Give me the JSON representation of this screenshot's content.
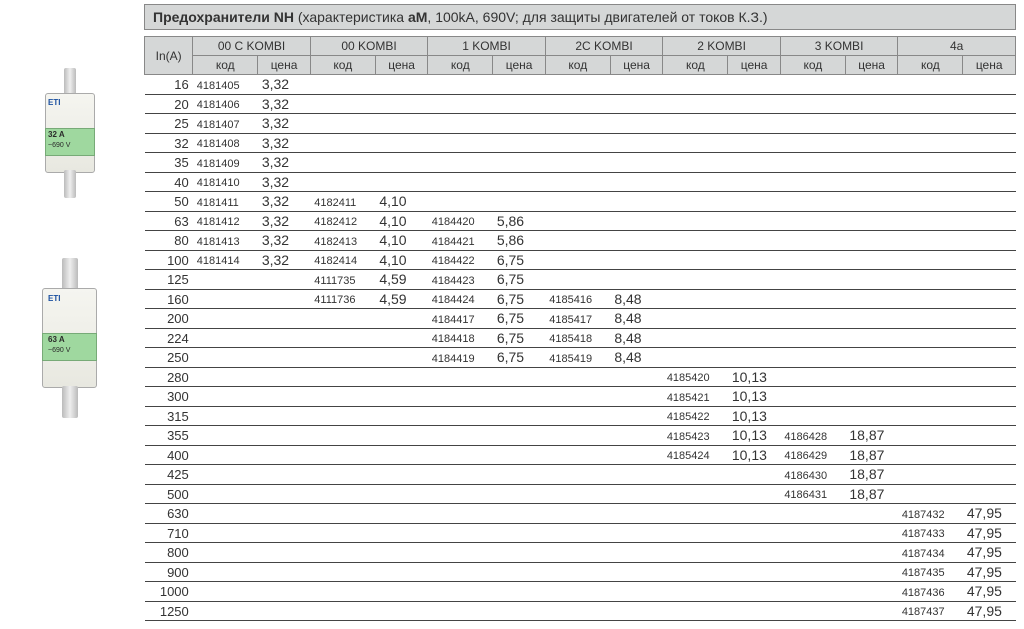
{
  "title": {
    "bold_prefix": "Предохранители NH",
    "paren_open": " (характеристика ",
    "am_bold": "аМ",
    "rest": ", 100kA, 690V; для защиты двигателей от токов К.З.)"
  },
  "columns": {
    "in_header": "In(A)",
    "groups": [
      "00 C KOMBI",
      "00 KOMBI",
      "1 KOMBI",
      "2C KOMBI",
      "2 KOMBI",
      "3 KOMBI",
      "4a"
    ],
    "sub_code": "код",
    "sub_price": "цена"
  },
  "rows": [
    {
      "in": "16",
      "cells": [
        [
          "4181405",
          "3,32"
        ],
        [
          "",
          ""
        ],
        [
          "",
          ""
        ],
        [
          "",
          ""
        ],
        [
          "",
          ""
        ],
        [
          "",
          ""
        ],
        [
          "",
          ""
        ]
      ]
    },
    {
      "in": "20",
      "cells": [
        [
          "4181406",
          "3,32"
        ],
        [
          "",
          ""
        ],
        [
          "",
          ""
        ],
        [
          "",
          ""
        ],
        [
          "",
          ""
        ],
        [
          "",
          ""
        ],
        [
          "",
          ""
        ]
      ]
    },
    {
      "in": "25",
      "cells": [
        [
          "4181407",
          "3,32"
        ],
        [
          "",
          ""
        ],
        [
          "",
          ""
        ],
        [
          "",
          ""
        ],
        [
          "",
          ""
        ],
        [
          "",
          ""
        ],
        [
          "",
          ""
        ]
      ]
    },
    {
      "in": "32",
      "cells": [
        [
          "4181408",
          "3,32"
        ],
        [
          "",
          ""
        ],
        [
          "",
          ""
        ],
        [
          "",
          ""
        ],
        [
          "",
          ""
        ],
        [
          "",
          ""
        ],
        [
          "",
          ""
        ]
      ]
    },
    {
      "in": "35",
      "cells": [
        [
          "4181409",
          "3,32"
        ],
        [
          "",
          ""
        ],
        [
          "",
          ""
        ],
        [
          "",
          ""
        ],
        [
          "",
          ""
        ],
        [
          "",
          ""
        ],
        [
          "",
          ""
        ]
      ]
    },
    {
      "in": "40",
      "cells": [
        [
          "4181410",
          "3,32"
        ],
        [
          "",
          ""
        ],
        [
          "",
          ""
        ],
        [
          "",
          ""
        ],
        [
          "",
          ""
        ],
        [
          "",
          ""
        ],
        [
          "",
          ""
        ]
      ]
    },
    {
      "in": "50",
      "cells": [
        [
          "4181411",
          "3,32"
        ],
        [
          "4182411",
          "4,10"
        ],
        [
          "",
          ""
        ],
        [
          "",
          ""
        ],
        [
          "",
          ""
        ],
        [
          "",
          ""
        ],
        [
          "",
          ""
        ]
      ]
    },
    {
      "in": "63",
      "cells": [
        [
          "4181412",
          "3,32"
        ],
        [
          "4182412",
          "4,10"
        ],
        [
          "4184420",
          "5,86"
        ],
        [
          "",
          ""
        ],
        [
          "",
          ""
        ],
        [
          "",
          ""
        ],
        [
          "",
          ""
        ]
      ]
    },
    {
      "in": "80",
      "cells": [
        [
          "4181413",
          "3,32"
        ],
        [
          "4182413",
          "4,10"
        ],
        [
          "4184421",
          "5,86"
        ],
        [
          "",
          ""
        ],
        [
          "",
          ""
        ],
        [
          "",
          ""
        ],
        [
          "",
          ""
        ]
      ]
    },
    {
      "in": "100",
      "cells": [
        [
          "4181414",
          "3,32"
        ],
        [
          "4182414",
          "4,10"
        ],
        [
          "4184422",
          "6,75"
        ],
        [
          "",
          ""
        ],
        [
          "",
          ""
        ],
        [
          "",
          ""
        ],
        [
          "",
          ""
        ]
      ]
    },
    {
      "in": "125",
      "cells": [
        [
          "",
          ""
        ],
        [
          "4111735",
          "4,59"
        ],
        [
          "4184423",
          "6,75"
        ],
        [
          "",
          ""
        ],
        [
          "",
          ""
        ],
        [
          "",
          ""
        ],
        [
          "",
          ""
        ]
      ]
    },
    {
      "in": "160",
      "cells": [
        [
          "",
          ""
        ],
        [
          "4111736",
          "4,59"
        ],
        [
          "4184424",
          "6,75"
        ],
        [
          "4185416",
          "8,48"
        ],
        [
          "",
          ""
        ],
        [
          "",
          ""
        ],
        [
          "",
          ""
        ]
      ]
    },
    {
      "in": "200",
      "cells": [
        [
          "",
          ""
        ],
        [
          "",
          ""
        ],
        [
          "4184417",
          "6,75"
        ],
        [
          "4185417",
          "8,48"
        ],
        [
          "",
          ""
        ],
        [
          "",
          ""
        ],
        [
          "",
          ""
        ]
      ]
    },
    {
      "in": "224",
      "cells": [
        [
          "",
          ""
        ],
        [
          "",
          ""
        ],
        [
          "4184418",
          "6,75"
        ],
        [
          "4185418",
          "8,48"
        ],
        [
          "",
          ""
        ],
        [
          "",
          ""
        ],
        [
          "",
          ""
        ]
      ]
    },
    {
      "in": "250",
      "cells": [
        [
          "",
          ""
        ],
        [
          "",
          ""
        ],
        [
          "4184419",
          "6,75"
        ],
        [
          "4185419",
          "8,48"
        ],
        [
          "",
          ""
        ],
        [
          "",
          ""
        ],
        [
          "",
          ""
        ]
      ]
    },
    {
      "in": "280",
      "cells": [
        [
          "",
          ""
        ],
        [
          "",
          ""
        ],
        [
          "",
          ""
        ],
        [
          "",
          ""
        ],
        [
          "4185420",
          "10,13"
        ],
        [
          "",
          ""
        ],
        [
          "",
          ""
        ]
      ]
    },
    {
      "in": "300",
      "cells": [
        [
          "",
          ""
        ],
        [
          "",
          ""
        ],
        [
          "",
          ""
        ],
        [
          "",
          ""
        ],
        [
          "4185421",
          "10,13"
        ],
        [
          "",
          ""
        ],
        [
          "",
          ""
        ]
      ]
    },
    {
      "in": "315",
      "cells": [
        [
          "",
          ""
        ],
        [
          "",
          ""
        ],
        [
          "",
          ""
        ],
        [
          "",
          ""
        ],
        [
          "4185422",
          "10,13"
        ],
        [
          "",
          ""
        ],
        [
          "",
          ""
        ]
      ]
    },
    {
      "in": "355",
      "cells": [
        [
          "",
          ""
        ],
        [
          "",
          ""
        ],
        [
          "",
          ""
        ],
        [
          "",
          ""
        ],
        [
          "4185423",
          "10,13"
        ],
        [
          "4186428",
          "18,87"
        ],
        [
          "",
          ""
        ]
      ]
    },
    {
      "in": "400",
      "cells": [
        [
          "",
          ""
        ],
        [
          "",
          ""
        ],
        [
          "",
          ""
        ],
        [
          "",
          ""
        ],
        [
          "4185424",
          "10,13"
        ],
        [
          "4186429",
          "18,87"
        ],
        [
          "",
          ""
        ]
      ]
    },
    {
      "in": "425",
      "cells": [
        [
          "",
          ""
        ],
        [
          "",
          ""
        ],
        [
          "",
          ""
        ],
        [
          "",
          ""
        ],
        [
          "",
          ""
        ],
        [
          "4186430",
          "18,87"
        ],
        [
          "",
          ""
        ]
      ]
    },
    {
      "in": "500",
      "cells": [
        [
          "",
          ""
        ],
        [
          "",
          ""
        ],
        [
          "",
          ""
        ],
        [
          "",
          ""
        ],
        [
          "",
          ""
        ],
        [
          "4186431",
          "18,87"
        ],
        [
          "",
          ""
        ]
      ]
    },
    {
      "in": "630",
      "cells": [
        [
          "",
          ""
        ],
        [
          "",
          ""
        ],
        [
          "",
          ""
        ],
        [
          "",
          ""
        ],
        [
          "",
          ""
        ],
        [
          "",
          ""
        ],
        [
          "4187432",
          "47,95"
        ]
      ]
    },
    {
      "in": "710",
      "cells": [
        [
          "",
          ""
        ],
        [
          "",
          ""
        ],
        [
          "",
          ""
        ],
        [
          "",
          ""
        ],
        [
          "",
          ""
        ],
        [
          "",
          ""
        ],
        [
          "4187433",
          "47,95"
        ]
      ]
    },
    {
      "in": "800",
      "cells": [
        [
          "",
          ""
        ],
        [
          "",
          ""
        ],
        [
          "",
          ""
        ],
        [
          "",
          ""
        ],
        [
          "",
          ""
        ],
        [
          "",
          ""
        ],
        [
          "4187434",
          "47,95"
        ]
      ]
    },
    {
      "in": "900",
      "cells": [
        [
          "",
          ""
        ],
        [
          "",
          ""
        ],
        [
          "",
          ""
        ],
        [
          "",
          ""
        ],
        [
          "",
          ""
        ],
        [
          "",
          ""
        ],
        [
          "4187435",
          "47,95"
        ]
      ]
    },
    {
      "in": "1000",
      "cells": [
        [
          "",
          ""
        ],
        [
          "",
          ""
        ],
        [
          "",
          ""
        ],
        [
          "",
          ""
        ],
        [
          "",
          ""
        ],
        [
          "",
          ""
        ],
        [
          "4187436",
          "47,95"
        ]
      ]
    },
    {
      "in": "1250",
      "cells": [
        [
          "",
          ""
        ],
        [
          "",
          ""
        ],
        [
          "",
          ""
        ],
        [
          "",
          ""
        ],
        [
          "",
          ""
        ],
        [
          "",
          ""
        ],
        [
          "4187437",
          "47,95"
        ]
      ]
    }
  ],
  "images": {
    "fuse1": {
      "main_label": "32 A",
      "sub_label": "~690 V",
      "brand": "ETI"
    },
    "fuse2": {
      "main_label": "63 A",
      "sub_label": "~690 V",
      "brand": "ETI"
    }
  },
  "style": {
    "header_bg": "#d5d7d7",
    "row_border": "#444444",
    "title_fontsize": 14,
    "code_fontsize": 11,
    "price_fontsize": 14,
    "in_fontsize": 13
  }
}
